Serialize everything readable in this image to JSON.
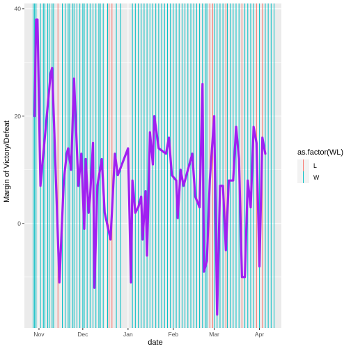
{
  "chart_data": {
    "type": "line",
    "xlabel": "date",
    "ylabel": "Margin of Victory/Defeat",
    "x_range": [
      "2017-10-22",
      "2018-04-16"
    ],
    "ylim": [
      -19.5,
      41
    ],
    "y_ticks": [
      0,
      20,
      40
    ],
    "y_tick_labels": [
      "0",
      "20",
      "40"
    ],
    "x_ticks": [
      "2017-11-01",
      "2017-12-01",
      "2018-01-01",
      "2018-02-01",
      "2018-03-01",
      "2018-04-01"
    ],
    "x_tick_labels": [
      "Nov",
      "Dec",
      "Jan",
      "Feb",
      "Mar",
      "Apr"
    ],
    "grid": true,
    "legend": {
      "title": "as.factor(WL)",
      "position": "right",
      "entries": [
        {
          "label": "L",
          "color": "#F8766D"
        },
        {
          "label": "W",
          "color": "#00BFC4"
        }
      ]
    },
    "series": [
      {
        "color": "#A020F0",
        "points": [
          [
            "2017-10-29",
            20
          ],
          [
            "2017-10-30",
            38
          ],
          [
            "2017-10-31",
            38
          ],
          [
            "2017-11-02",
            7
          ],
          [
            "2017-11-08",
            25
          ],
          [
            "2017-11-09",
            28
          ],
          [
            "2017-11-10",
            29
          ],
          [
            "2017-11-15",
            -11
          ],
          [
            "2017-11-18",
            8
          ],
          [
            "2017-11-20",
            13
          ],
          [
            "2017-11-21",
            14
          ],
          [
            "2017-11-23",
            10
          ],
          [
            "2017-11-25",
            27
          ],
          [
            "2017-11-28",
            7
          ],
          [
            "2017-11-30",
            13
          ],
          [
            "2017-12-02",
            -1
          ],
          [
            "2017-12-03",
            12
          ],
          [
            "2017-12-05",
            2
          ],
          [
            "2017-12-06",
            5
          ],
          [
            "2017-12-08",
            15
          ],
          [
            "2017-12-09",
            -12
          ],
          [
            "2017-12-11",
            7
          ],
          [
            "2017-12-14",
            12
          ],
          [
            "2017-12-16",
            2
          ],
          [
            "2017-12-20",
            -3
          ],
          [
            "2017-12-23",
            13
          ],
          [
            "2017-12-25",
            9
          ],
          [
            "2018-01-01",
            14
          ],
          [
            "2018-01-03",
            -11
          ],
          [
            "2018-01-04",
            8
          ],
          [
            "2018-01-06",
            2
          ],
          [
            "2018-01-08",
            3
          ],
          [
            "2018-01-10",
            5
          ],
          [
            "2018-01-11",
            -3
          ],
          [
            "2018-01-13",
            6
          ],
          [
            "2018-01-14",
            -6
          ],
          [
            "2018-01-16",
            17
          ],
          [
            "2018-01-18",
            11
          ],
          [
            "2018-01-19",
            20
          ],
          [
            "2018-01-22",
            14
          ],
          [
            "2018-01-27",
            13
          ],
          [
            "2018-01-29",
            16
          ],
          [
            "2018-01-31",
            9
          ],
          [
            "2018-02-03",
            8
          ],
          [
            "2018-02-04",
            1
          ],
          [
            "2018-02-06",
            10
          ],
          [
            "2018-02-08",
            7
          ],
          [
            "2018-02-14",
            13
          ],
          [
            "2018-02-16",
            5
          ],
          [
            "2018-02-19",
            3
          ],
          [
            "2018-02-21",
            26
          ],
          [
            "2018-02-22",
            -9
          ],
          [
            "2018-02-24",
            -7
          ],
          [
            "2018-02-26",
            8
          ],
          [
            "2018-03-01",
            20
          ],
          [
            "2018-03-03",
            -17
          ],
          [
            "2018-03-05",
            7
          ],
          [
            "2018-03-07",
            7
          ],
          [
            "2018-03-09",
            -5
          ],
          [
            "2018-03-11",
            8
          ],
          [
            "2018-03-14",
            8
          ],
          [
            "2018-03-16",
            18
          ],
          [
            "2018-03-18",
            12
          ],
          [
            "2018-03-20",
            -10
          ],
          [
            "2018-03-22",
            -10
          ],
          [
            "2018-03-24",
            8
          ],
          [
            "2018-03-26",
            3
          ],
          [
            "2018-03-28",
            18
          ],
          [
            "2018-03-30",
            15
          ],
          [
            "2018-04-01",
            -8
          ],
          [
            "2018-04-03",
            16
          ],
          [
            "2018-04-05",
            13
          ]
        ]
      }
    ],
    "game_lines": [
      {
        "date": "2017-10-28",
        "result": "W"
      },
      {
        "date": "2017-10-29",
        "result": "W"
      },
      {
        "date": "2017-10-30",
        "result": "W"
      },
      {
        "date": "2017-11-02",
        "result": "W"
      },
      {
        "date": "2017-11-04",
        "result": "W"
      },
      {
        "date": "2017-11-05",
        "result": "W"
      },
      {
        "date": "2017-11-07",
        "result": "W"
      },
      {
        "date": "2017-11-08",
        "result": "W"
      },
      {
        "date": "2017-11-10",
        "result": "W"
      },
      {
        "date": "2017-11-11",
        "result": "W"
      },
      {
        "date": "2017-11-14",
        "result": "L"
      },
      {
        "date": "2017-11-17",
        "result": "W"
      },
      {
        "date": "2017-11-19",
        "result": "W"
      },
      {
        "date": "2017-11-21",
        "result": "W"
      },
      {
        "date": "2017-11-22",
        "result": "W"
      },
      {
        "date": "2017-11-24",
        "result": "W"
      },
      {
        "date": "2017-11-25",
        "result": "W"
      },
      {
        "date": "2017-11-27",
        "result": "W"
      },
      {
        "date": "2017-11-29",
        "result": "W"
      },
      {
        "date": "2017-12-01",
        "result": "W"
      },
      {
        "date": "2017-12-02",
        "result": "W"
      },
      {
        "date": "2017-12-04",
        "result": "W"
      },
      {
        "date": "2017-12-06",
        "result": "W"
      },
      {
        "date": "2017-12-08",
        "result": "W"
      },
      {
        "date": "2017-12-10",
        "result": "W"
      },
      {
        "date": "2017-12-12",
        "result": "W"
      },
      {
        "date": "2017-12-13",
        "result": "W"
      },
      {
        "date": "2017-12-15",
        "result": "W"
      },
      {
        "date": "2017-12-18",
        "result": "W"
      },
      {
        "date": "2017-12-19",
        "result": "L"
      },
      {
        "date": "2017-12-21",
        "result": "L"
      },
      {
        "date": "2017-12-24",
        "result": "W"
      },
      {
        "date": "2017-12-27",
        "result": "W"
      },
      {
        "date": "2018-01-04",
        "result": "W"
      },
      {
        "date": "2018-01-06",
        "result": "W"
      },
      {
        "date": "2018-01-08",
        "result": "W"
      },
      {
        "date": "2018-01-10",
        "result": "W"
      },
      {
        "date": "2018-01-12",
        "result": "W"
      },
      {
        "date": "2018-01-14",
        "result": "W"
      },
      {
        "date": "2018-01-16",
        "result": "W"
      },
      {
        "date": "2018-01-18",
        "result": "W"
      },
      {
        "date": "2018-01-20",
        "result": "W"
      },
      {
        "date": "2018-01-22",
        "result": "W"
      },
      {
        "date": "2018-01-24",
        "result": "W"
      },
      {
        "date": "2018-01-26",
        "result": "W"
      },
      {
        "date": "2018-01-28",
        "result": "W"
      },
      {
        "date": "2018-01-30",
        "result": "W"
      },
      {
        "date": "2018-02-01",
        "result": "W"
      },
      {
        "date": "2018-02-03",
        "result": "W"
      },
      {
        "date": "2018-02-05",
        "result": "W"
      },
      {
        "date": "2018-02-07",
        "result": "W"
      },
      {
        "date": "2018-02-09",
        "result": "W"
      },
      {
        "date": "2018-02-11",
        "result": "W"
      },
      {
        "date": "2018-02-13",
        "result": "W"
      },
      {
        "date": "2018-02-15",
        "result": "W"
      },
      {
        "date": "2018-02-17",
        "result": "W"
      },
      {
        "date": "2018-02-19",
        "result": "W"
      },
      {
        "date": "2018-02-21",
        "result": "W"
      },
      {
        "date": "2018-02-23",
        "result": "W"
      },
      {
        "date": "2018-02-24",
        "result": "W"
      },
      {
        "date": "2018-02-26",
        "result": "L"
      },
      {
        "date": "2018-02-28",
        "result": "L"
      },
      {
        "date": "2018-03-01",
        "result": "W"
      },
      {
        "date": "2018-03-03",
        "result": "W"
      },
      {
        "date": "2018-03-05",
        "result": "W"
      },
      {
        "date": "2018-03-07",
        "result": "W"
      },
      {
        "date": "2018-03-09",
        "result": "L"
      },
      {
        "date": "2018-03-10",
        "result": "W"
      },
      {
        "date": "2018-03-12",
        "result": "W"
      },
      {
        "date": "2018-03-14",
        "result": "W"
      },
      {
        "date": "2018-03-16",
        "result": "W"
      },
      {
        "date": "2018-03-18",
        "result": "W"
      },
      {
        "date": "2018-03-20",
        "result": "L"
      },
      {
        "date": "2018-03-22",
        "result": "W"
      },
      {
        "date": "2018-03-24",
        "result": "W"
      },
      {
        "date": "2018-03-26",
        "result": "W"
      },
      {
        "date": "2018-03-28",
        "result": "W"
      },
      {
        "date": "2018-03-30",
        "result": "L"
      },
      {
        "date": "2018-04-01",
        "result": "W"
      },
      {
        "date": "2018-04-03",
        "result": "L"
      },
      {
        "date": "2018-04-05",
        "result": "W"
      },
      {
        "date": "2018-04-07",
        "result": "W"
      },
      {
        "date": "2018-04-09",
        "result": "W"
      },
      {
        "date": "2018-04-11",
        "result": "W"
      }
    ]
  }
}
